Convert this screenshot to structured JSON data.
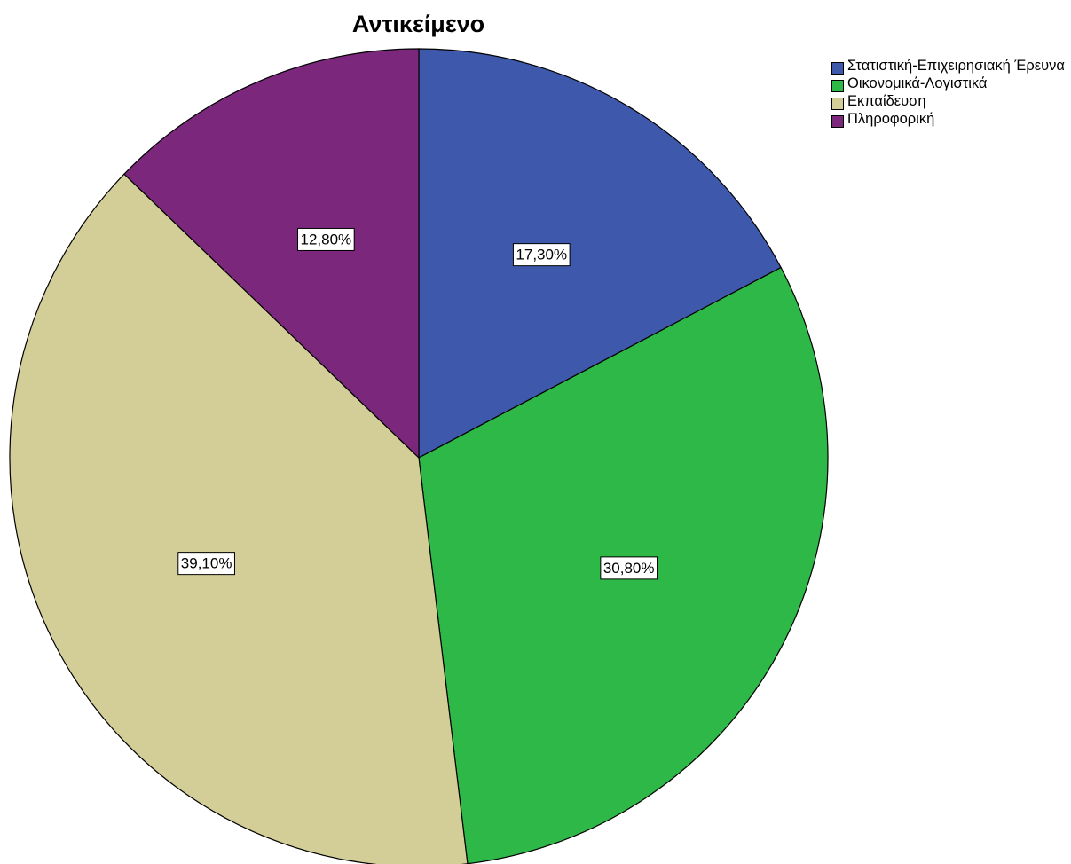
{
  "chart_data": {
    "type": "pie",
    "title": "Αντικείμενο",
    "legend_position": "top-right",
    "start_angle_deg": 0,
    "direction": "clockwise",
    "slices": [
      {
        "name": "Στατιστική-Επιχειρησιακή Έρευνα",
        "value": 17.3,
        "label": "17,30%",
        "color": "#3e58ac"
      },
      {
        "name": "Οικονομικά-Λογιστικά",
        "value": 30.8,
        "label": "30,80%",
        "color": "#2eb848"
      },
      {
        "name": "Εκπαίδευση",
        "value": 39.1,
        "label": "39,10%",
        "color": "#d3ce97"
      },
      {
        "name": "Πληροφορική",
        "value": 12.8,
        "label": "12,80%",
        "color": "#7b287c"
      }
    ]
  }
}
